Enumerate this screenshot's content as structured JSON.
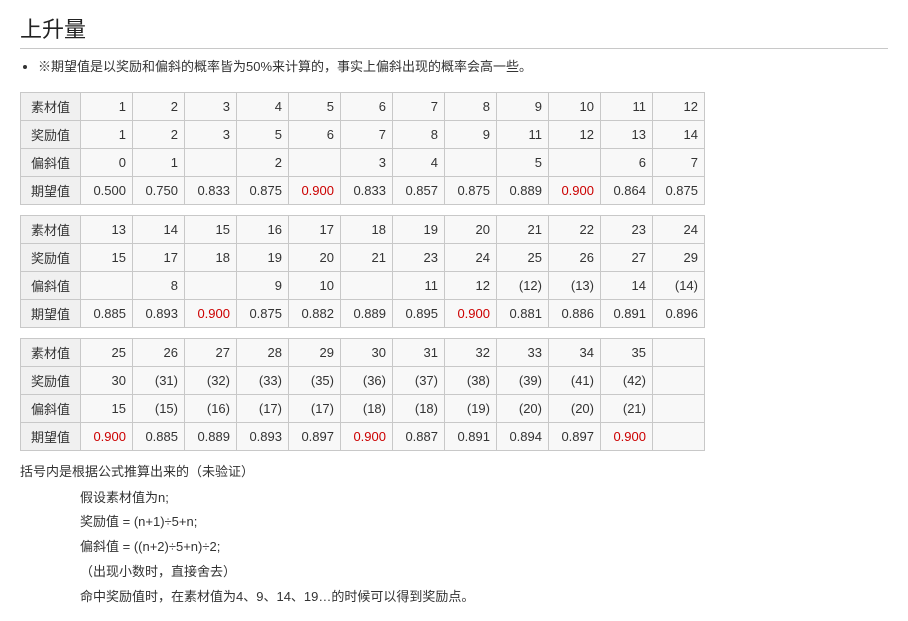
{
  "title": "上升量",
  "note": "※期望值是以奖励和偏斜的概率皆为50%来计算的，事实上偏斜出现的概率会高一些。",
  "row_labels": [
    "素材值",
    "奖励值",
    "偏斜值",
    "期望值"
  ],
  "highlight_color": "#cc0000",
  "highlight_value": "0.900",
  "blocks": [
    {
      "material": [
        "1",
        "2",
        "3",
        "4",
        "5",
        "6",
        "7",
        "8",
        "9",
        "10",
        "11",
        "12"
      ],
      "reward": [
        "1",
        "2",
        "3",
        "5",
        "6",
        "7",
        "8",
        "9",
        "11",
        "12",
        "13",
        "14"
      ],
      "bias": [
        "0",
        "1",
        "",
        "2",
        "",
        "3",
        "4",
        "",
        "5",
        "",
        "6",
        "7"
      ],
      "expect": [
        "0.500",
        "0.750",
        "0.833",
        "0.875",
        "0.900",
        "0.833",
        "0.857",
        "0.875",
        "0.889",
        "0.900",
        "0.864",
        "0.875"
      ]
    },
    {
      "material": [
        "13",
        "14",
        "15",
        "16",
        "17",
        "18",
        "19",
        "20",
        "21",
        "22",
        "23",
        "24"
      ],
      "reward": [
        "15",
        "17",
        "18",
        "19",
        "20",
        "21",
        "23",
        "24",
        "25",
        "26",
        "27",
        "29"
      ],
      "bias": [
        "",
        "8",
        "",
        "9",
        "10",
        "",
        "11",
        "12",
        "(12)",
        "(13)",
        "14",
        "(14)"
      ],
      "expect": [
        "0.885",
        "0.893",
        "0.900",
        "0.875",
        "0.882",
        "0.889",
        "0.895",
        "0.900",
        "0.881",
        "0.886",
        "0.891",
        "0.896"
      ]
    },
    {
      "material": [
        "25",
        "26",
        "27",
        "28",
        "29",
        "30",
        "31",
        "32",
        "33",
        "34",
        "35",
        ""
      ],
      "reward": [
        "30",
        "(31)",
        "(32)",
        "(33)",
        "(35)",
        "(36)",
        "(37)",
        "(38)",
        "(39)",
        "(41)",
        "(42)",
        ""
      ],
      "bias": [
        "15",
        "(15)",
        "(16)",
        "(17)",
        "(17)",
        "(18)",
        "(18)",
        "(19)",
        "(20)",
        "(20)",
        "(21)",
        ""
      ],
      "expect": [
        "0.900",
        "0.885",
        "0.889",
        "0.893",
        "0.897",
        "0.900",
        "0.887",
        "0.891",
        "0.894",
        "0.897",
        "0.900",
        ""
      ]
    }
  ],
  "footer_intro": "括号内是根据公式推算出来的（未验证）",
  "formulas": [
    "假设素材值为n;",
    "奖励值 = (n+1)÷5+n;",
    "偏斜值 = ((n+2)÷5+n)÷2;",
    "（出现小数时，直接舍去）",
    "命中奖励值时，在素材值为4、9、14、19…的时候可以得到奖励点。"
  ]
}
